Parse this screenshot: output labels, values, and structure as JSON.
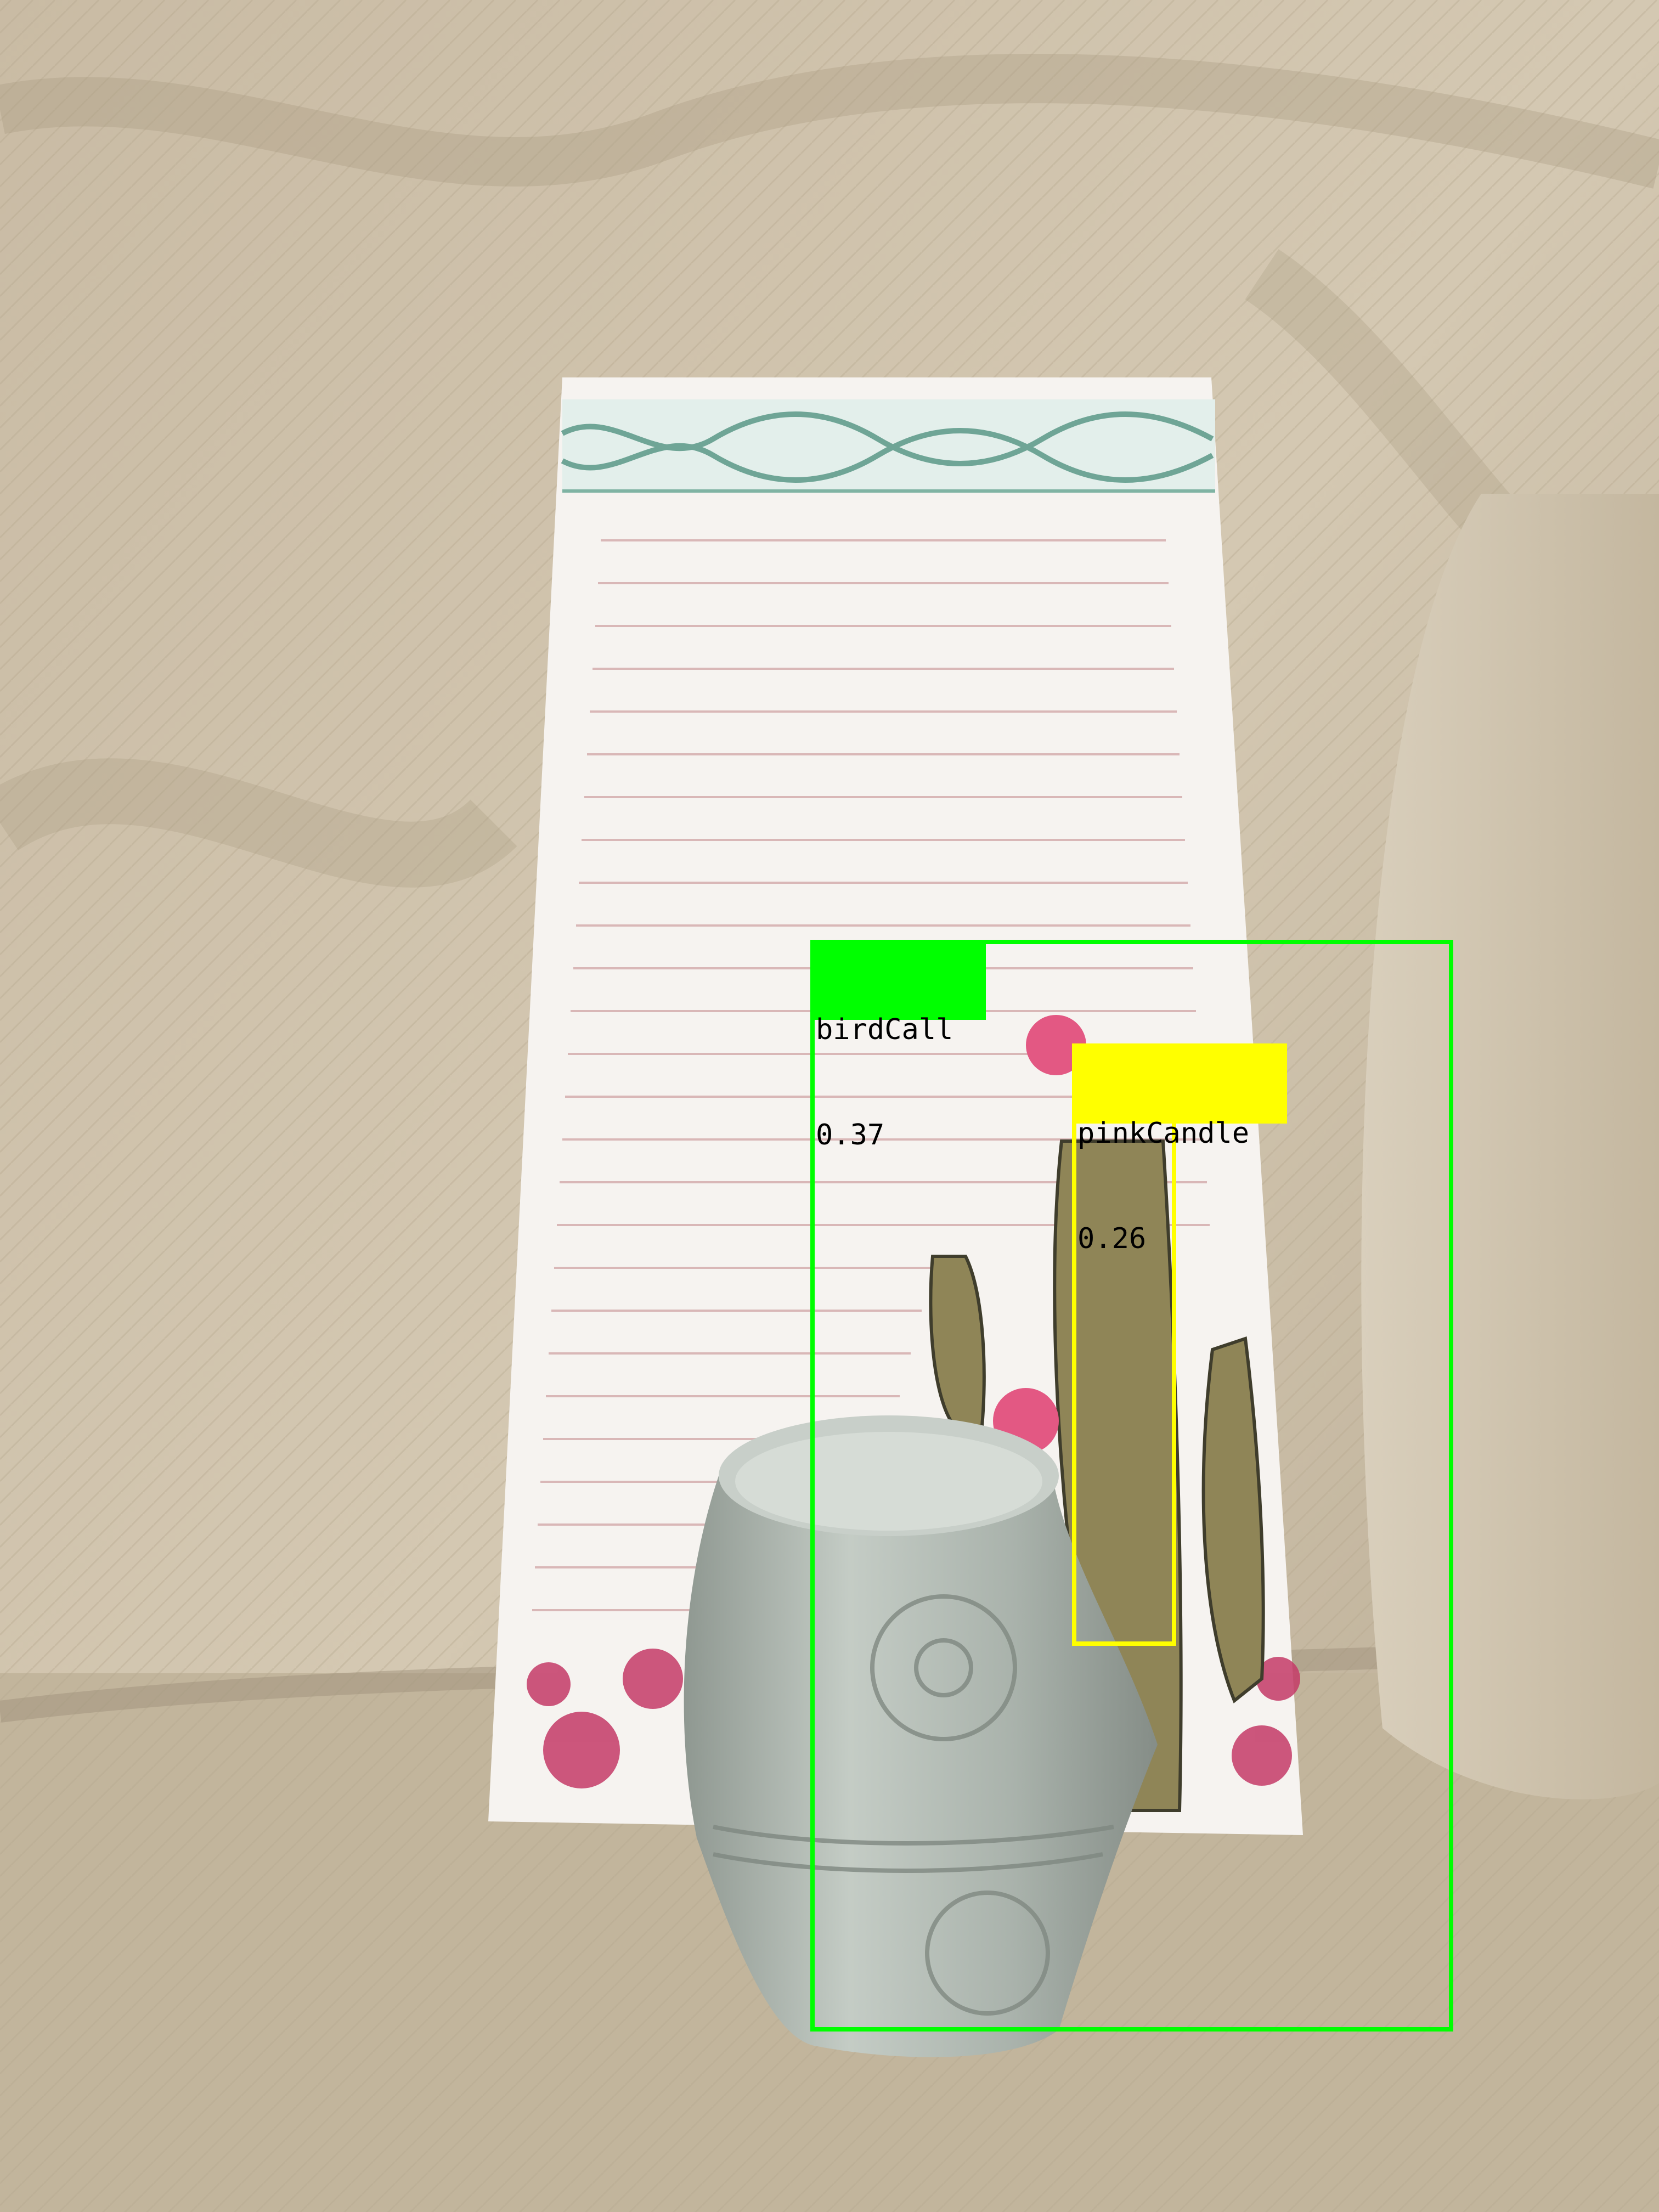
{
  "detections": [
    {
      "label": "birdCall",
      "score": "0.37",
      "color": "#00ff00"
    },
    {
      "label": "pinkCandle",
      "score": "0.26",
      "color": "#ffff00"
    }
  ],
  "scene": {
    "description_icons": [
      "couch-fabric",
      "notepad",
      "cactus-illustration",
      "ceramic-candle-holder"
    ]
  }
}
